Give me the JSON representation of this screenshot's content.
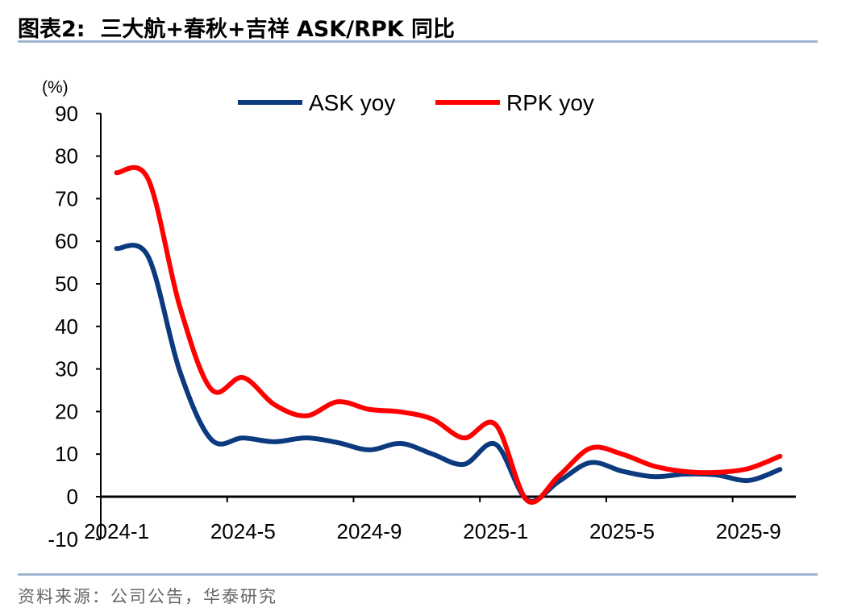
{
  "header": {
    "title": "图表2:  三大航+春秋+吉祥 ASK/RPK 同比"
  },
  "footer": {
    "source": "资料来源：公司公告，华泰研究"
  },
  "chart_data": {
    "type": "line",
    "title": "三大航+春秋+吉祥 ASK/RPK 同比",
    "ylabel": "(%)",
    "xlabel": "",
    "ylim": [
      -10,
      90
    ],
    "yticks": [
      -10,
      0,
      10,
      20,
      30,
      40,
      50,
      60,
      70,
      80,
      90
    ],
    "x": [
      "2024-1",
      "2024-2",
      "2024-3",
      "2024-4",
      "2024-5",
      "2024-6",
      "2024-7",
      "2024-8",
      "2024-9",
      "2024-10",
      "2024-11",
      "2024-12",
      "2025-1",
      "2025-2",
      "2025-3",
      "2025-4",
      "2025-5",
      "2025-6",
      "2025-7",
      "2025-8",
      "2025-9",
      "2025-10"
    ],
    "xtick_labels": [
      "2024-1",
      "2024-5",
      "2024-9",
      "2025-1",
      "2025-5",
      "2025-9"
    ],
    "legend": "top-center",
    "grid": false,
    "series": [
      {
        "name": "ASK yoy",
        "color": "#0b3a7e",
        "values": [
          58.3,
          56.4,
          29.5,
          13.4,
          13.8,
          12.9,
          13.8,
          12.7,
          11.0,
          12.5,
          10.0,
          7.6,
          12.3,
          -0.8,
          3.6,
          8.0,
          6.0,
          4.7,
          5.3,
          5.1,
          3.8,
          6.4
        ]
      },
      {
        "name": "RPK yoy",
        "color": "#ff0000",
        "values": [
          76.1,
          74.6,
          44.7,
          25.2,
          28.0,
          21.6,
          19.0,
          22.3,
          20.5,
          19.9,
          18.2,
          13.8,
          16.9,
          -0.9,
          4.9,
          11.4,
          10.0,
          7.2,
          5.9,
          5.7,
          6.6,
          9.5
        ]
      }
    ]
  }
}
